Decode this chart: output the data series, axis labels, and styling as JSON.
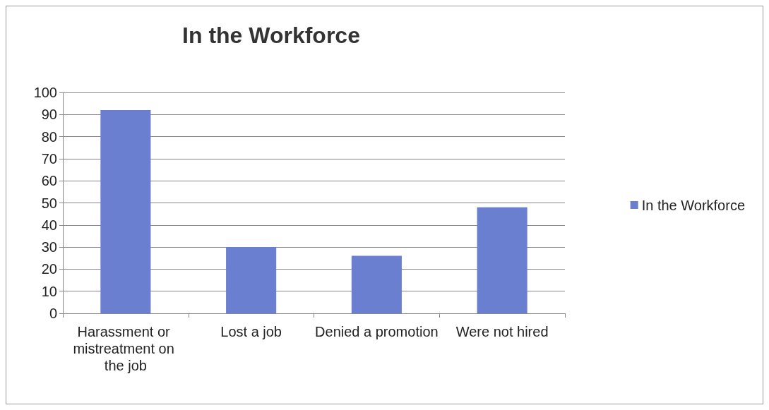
{
  "chart_data": {
    "type": "bar",
    "title": "In the Workforce",
    "categories": [
      "Harassment or mistreatment on the job",
      "Lost a job",
      "Denied a promotion",
      "Were not hired"
    ],
    "series": [
      {
        "name": "In the Workforce",
        "color": "#6a7fcf",
        "values": [
          92,
          30,
          26,
          48
        ]
      }
    ],
    "ylim": [
      0,
      100
    ],
    "yticks": [
      0,
      10,
      20,
      30,
      40,
      50,
      60,
      70,
      80,
      90,
      100
    ],
    "grid": "y",
    "legend": "right"
  }
}
